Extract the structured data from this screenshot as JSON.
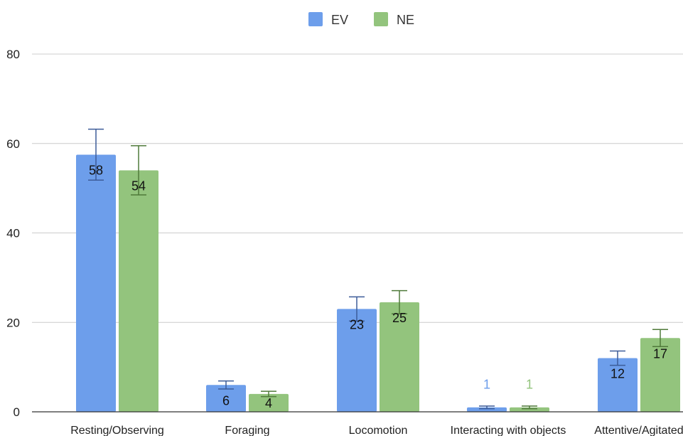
{
  "chart_data": {
    "type": "bar",
    "title": "",
    "xlabel": "",
    "ylabel": "",
    "ylim": [
      0,
      80
    ],
    "yticks": [
      0,
      20,
      40,
      60,
      80
    ],
    "grid": true,
    "legend_position": "top-center",
    "categories": [
      "Resting/Observing",
      "Foraging",
      "Locomotion",
      "Interacting with objects",
      "Attentive/Agitated"
    ],
    "series": [
      {
        "name": "EV",
        "color": "#6d9eeb",
        "error_color": "#3d5c99",
        "values": [
          57.5,
          6,
          23,
          1,
          12
        ],
        "error": [
          5.7,
          0.9,
          2.7,
          0.3,
          1.6
        ],
        "labels": [
          "58",
          "6",
          "23",
          "1",
          "12"
        ],
        "label_color_outside": "#6d9eeb"
      },
      {
        "name": "NE",
        "color": "#93c47d",
        "error_color": "#4f7a3a",
        "values": [
          54,
          4,
          24.5,
          1,
          16.5
        ],
        "error": [
          5.5,
          0.6,
          2.6,
          0.3,
          1.9
        ],
        "labels": [
          "54",
          "4",
          "25",
          "1",
          "17"
        ],
        "label_color_outside": "#93c47d"
      }
    ]
  }
}
